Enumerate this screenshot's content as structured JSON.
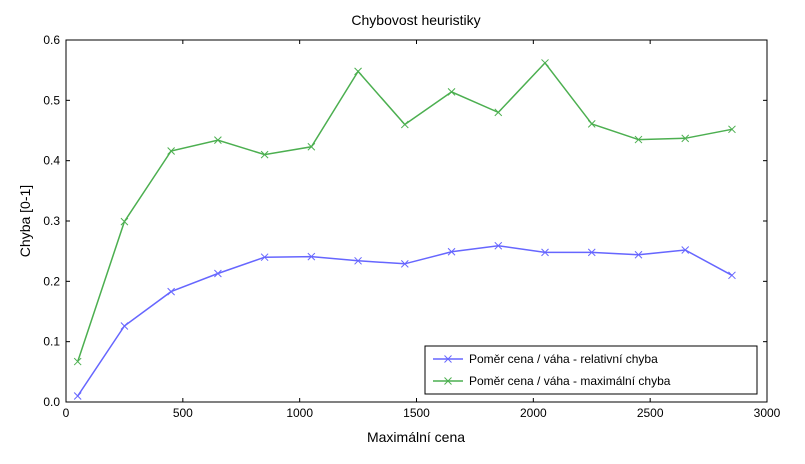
{
  "chart_data": {
    "type": "line",
    "title": "Chybovost heuristiky",
    "xlabel": "Maximální cena",
    "ylabel": "Chyba [0-1]",
    "xlim": [
      0,
      3000
    ],
    "ylim": [
      0,
      0.6
    ],
    "xticks": [
      0,
      500,
      1000,
      1500,
      2000,
      2500,
      3000
    ],
    "xtick_labels": [
      "0",
      "500",
      "1000",
      "1500",
      "2000",
      "2500",
      "3000"
    ],
    "yticks": [
      0,
      0.1,
      0.2,
      0.3,
      0.4,
      0.5,
      0.6
    ],
    "ytick_labels": [
      "0.0",
      "0.1",
      "0.2",
      "0.3",
      "0.4",
      "0.5",
      "0.6"
    ],
    "grid": false,
    "legend_position": "lower-right",
    "x": [
      50,
      250,
      450,
      650,
      850,
      1050,
      1250,
      1450,
      1650,
      1850,
      2050,
      2250,
      2450,
      2650,
      2850
    ],
    "series": [
      {
        "name": "Poměr cena / váha - relativní chyba",
        "color": "#6666ff",
        "marker": "x",
        "values": [
          0.01,
          0.126,
          0.183,
          0.213,
          0.24,
          0.241,
          0.234,
          0.229,
          0.249,
          0.259,
          0.248,
          0.248,
          0.244,
          0.252,
          0.21
        ]
      },
      {
        "name": "Poměr cena / váha - maximální chyba",
        "color": "#4caf50",
        "marker": "x",
        "values": [
          0.067,
          0.299,
          0.416,
          0.434,
          0.41,
          0.423,
          0.548,
          0.46,
          0.514,
          0.48,
          0.562,
          0.461,
          0.435,
          0.437,
          0.452
        ]
      }
    ]
  }
}
